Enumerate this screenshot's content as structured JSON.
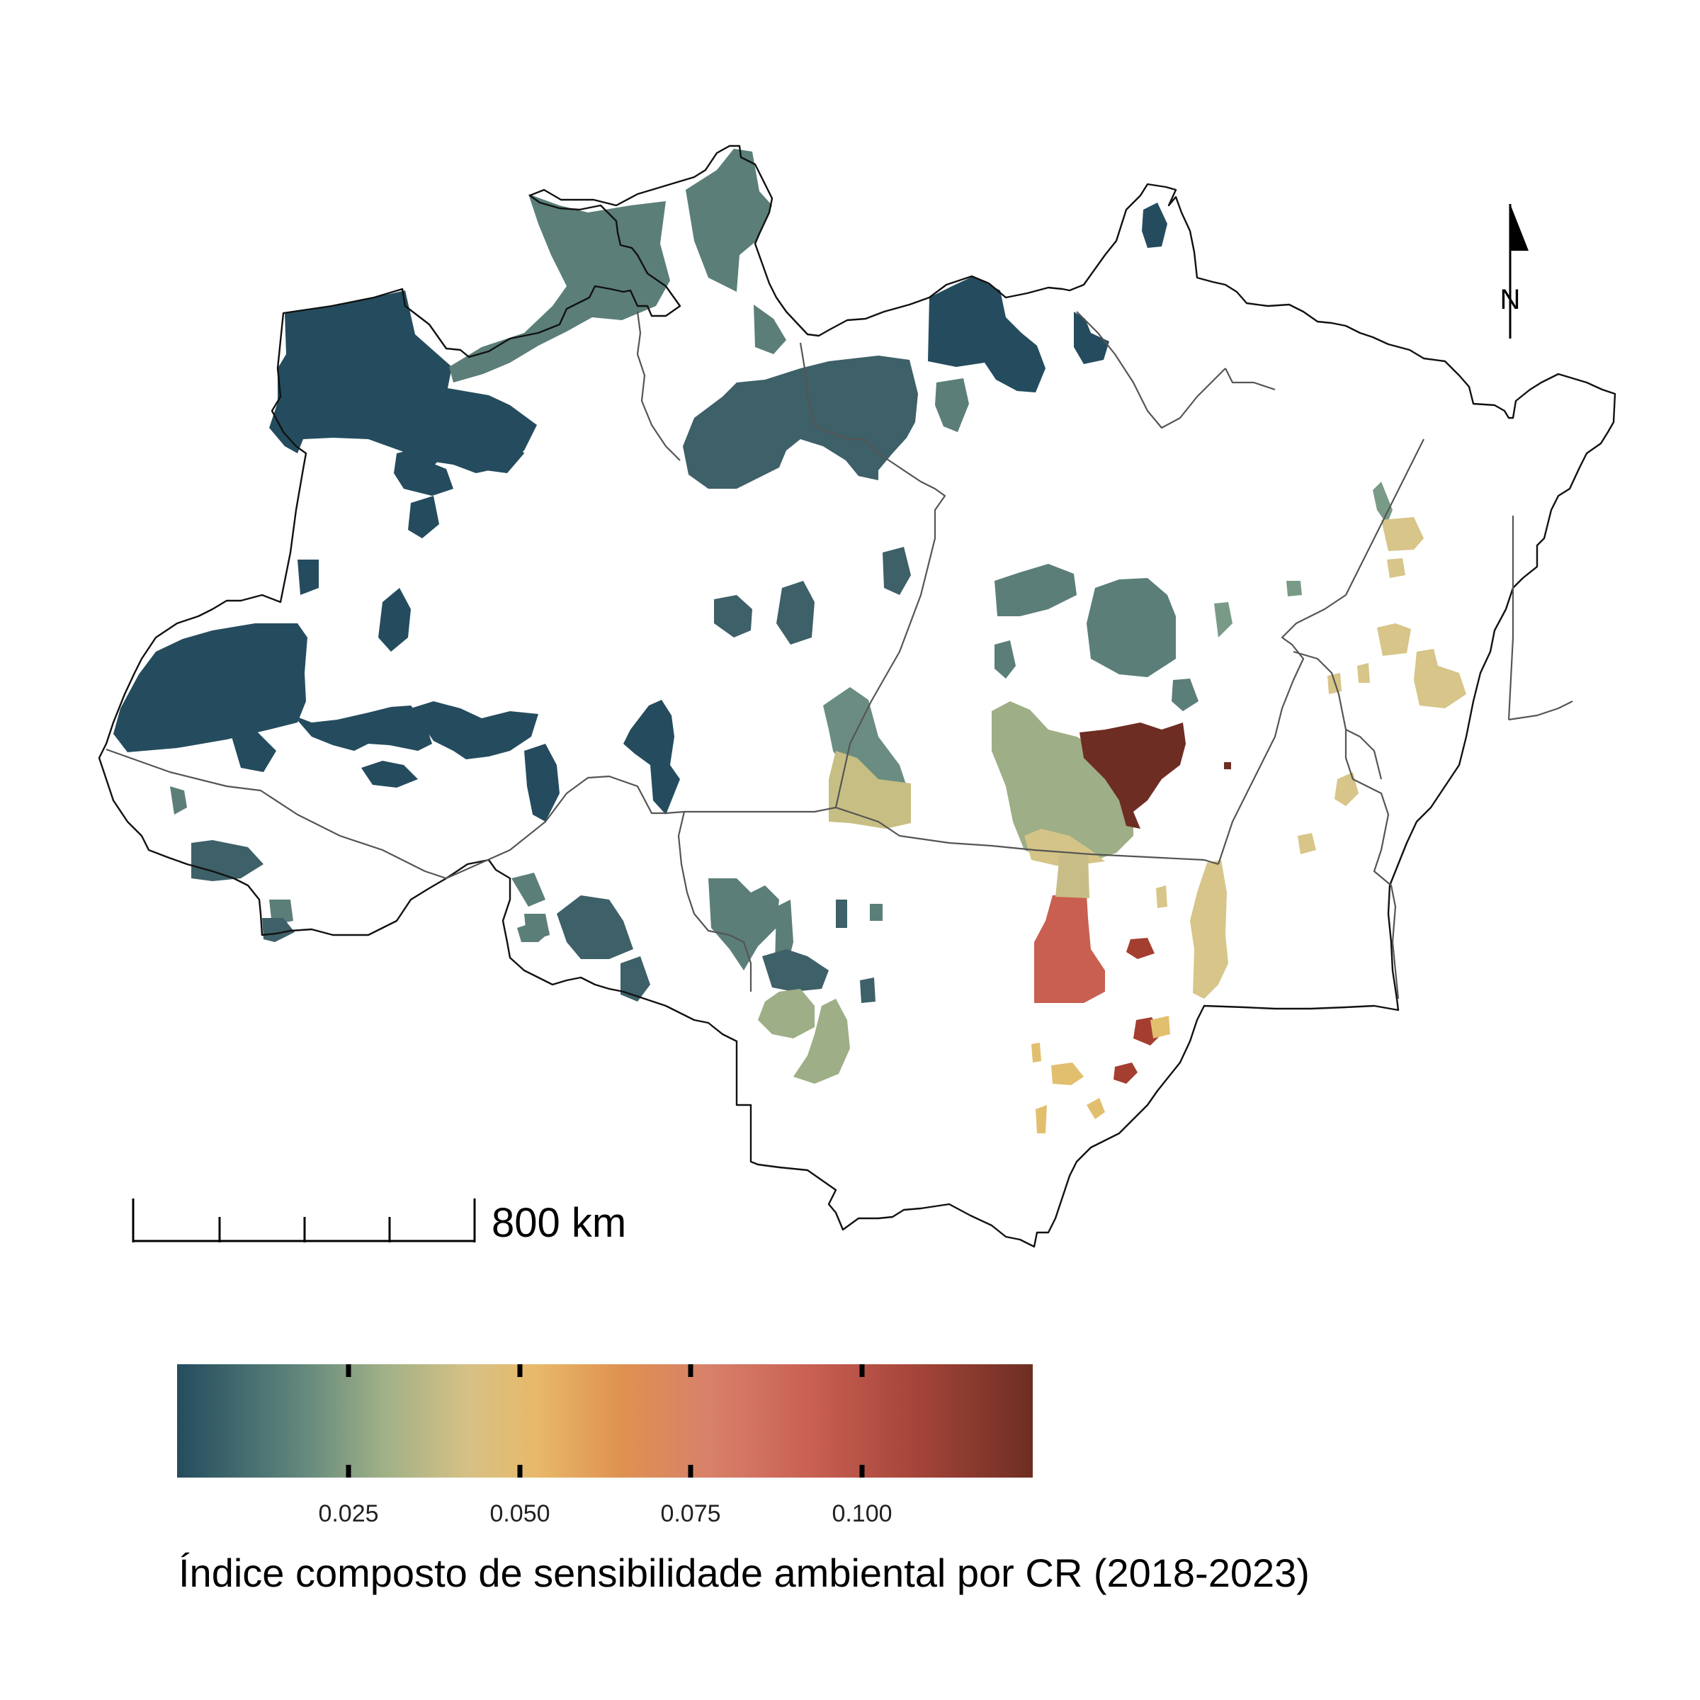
{
  "map": {
    "scale_bar": {
      "label": "800 km"
    },
    "north_arrow": {
      "label": "N"
    }
  },
  "legend": {
    "title": "Índice composto de sensibilidade ambiental por CR (2018-2023)",
    "ticks": [
      "0.025",
      "0.050",
      "0.075",
      "0.100"
    ],
    "tick_values": [
      0.025,
      0.05,
      0.075,
      0.1
    ],
    "range": [
      0,
      0.125
    ],
    "gradient_colors": [
      "#244c5e",
      "#5f857c",
      "#9fb087",
      "#d6c185",
      "#e8b96a",
      "#df9150",
      "#d8816a",
      "#c96053",
      "#a6453a",
      "#6e2e22"
    ]
  },
  "colors": {
    "very_low": "#244c5e",
    "low": "#5f817b",
    "low_mid": "#9fae86",
    "mid": "#d6c68a",
    "yellow": "#e2bf6e",
    "orange_red": "#c95f50",
    "red": "#a43e30",
    "dark_red": "#6e2d22"
  }
}
